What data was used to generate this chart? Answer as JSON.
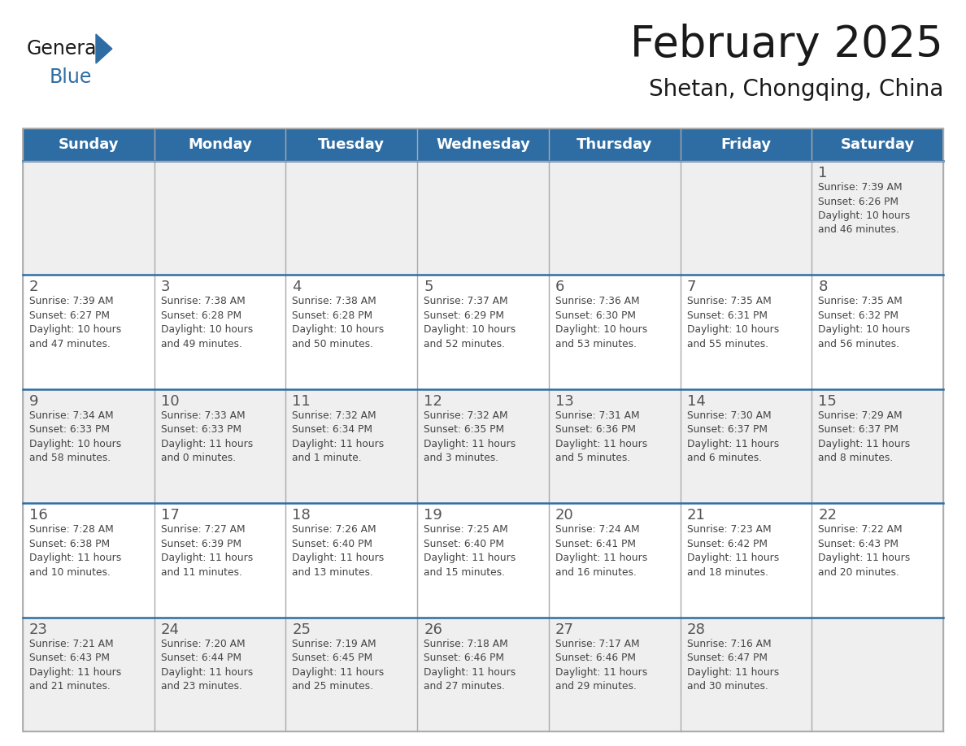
{
  "title": "February 2025",
  "subtitle": "Shetan, Chongqing, China",
  "days_of_week": [
    "Sunday",
    "Monday",
    "Tuesday",
    "Wednesday",
    "Thursday",
    "Friday",
    "Saturday"
  ],
  "header_bg": "#2E6DA4",
  "header_text_color": "#FFFFFF",
  "cell_bg_light": "#EFEFEF",
  "cell_bg_white": "#FFFFFF",
  "cell_text_color": "#444444",
  "day_num_color": "#555555",
  "title_color": "#1a1a1a",
  "subtitle_color": "#1a1a1a",
  "grid_color": "#AAAAAA",
  "row_sep_color": "#2E6DA4",
  "logo_general_color": "#1a1a1a",
  "logo_blue_color": "#2E6DA4",
  "weeks": [
    [
      {
        "day": null,
        "info": null
      },
      {
        "day": null,
        "info": null
      },
      {
        "day": null,
        "info": null
      },
      {
        "day": null,
        "info": null
      },
      {
        "day": null,
        "info": null
      },
      {
        "day": null,
        "info": null
      },
      {
        "day": 1,
        "info": "Sunrise: 7:39 AM\nSunset: 6:26 PM\nDaylight: 10 hours\nand 46 minutes."
      }
    ],
    [
      {
        "day": 2,
        "info": "Sunrise: 7:39 AM\nSunset: 6:27 PM\nDaylight: 10 hours\nand 47 minutes."
      },
      {
        "day": 3,
        "info": "Sunrise: 7:38 AM\nSunset: 6:28 PM\nDaylight: 10 hours\nand 49 minutes."
      },
      {
        "day": 4,
        "info": "Sunrise: 7:38 AM\nSunset: 6:28 PM\nDaylight: 10 hours\nand 50 minutes."
      },
      {
        "day": 5,
        "info": "Sunrise: 7:37 AM\nSunset: 6:29 PM\nDaylight: 10 hours\nand 52 minutes."
      },
      {
        "day": 6,
        "info": "Sunrise: 7:36 AM\nSunset: 6:30 PM\nDaylight: 10 hours\nand 53 minutes."
      },
      {
        "day": 7,
        "info": "Sunrise: 7:35 AM\nSunset: 6:31 PM\nDaylight: 10 hours\nand 55 minutes."
      },
      {
        "day": 8,
        "info": "Sunrise: 7:35 AM\nSunset: 6:32 PM\nDaylight: 10 hours\nand 56 minutes."
      }
    ],
    [
      {
        "day": 9,
        "info": "Sunrise: 7:34 AM\nSunset: 6:33 PM\nDaylight: 10 hours\nand 58 minutes."
      },
      {
        "day": 10,
        "info": "Sunrise: 7:33 AM\nSunset: 6:33 PM\nDaylight: 11 hours\nand 0 minutes."
      },
      {
        "day": 11,
        "info": "Sunrise: 7:32 AM\nSunset: 6:34 PM\nDaylight: 11 hours\nand 1 minute."
      },
      {
        "day": 12,
        "info": "Sunrise: 7:32 AM\nSunset: 6:35 PM\nDaylight: 11 hours\nand 3 minutes."
      },
      {
        "day": 13,
        "info": "Sunrise: 7:31 AM\nSunset: 6:36 PM\nDaylight: 11 hours\nand 5 minutes."
      },
      {
        "day": 14,
        "info": "Sunrise: 7:30 AM\nSunset: 6:37 PM\nDaylight: 11 hours\nand 6 minutes."
      },
      {
        "day": 15,
        "info": "Sunrise: 7:29 AM\nSunset: 6:37 PM\nDaylight: 11 hours\nand 8 minutes."
      }
    ],
    [
      {
        "day": 16,
        "info": "Sunrise: 7:28 AM\nSunset: 6:38 PM\nDaylight: 11 hours\nand 10 minutes."
      },
      {
        "day": 17,
        "info": "Sunrise: 7:27 AM\nSunset: 6:39 PM\nDaylight: 11 hours\nand 11 minutes."
      },
      {
        "day": 18,
        "info": "Sunrise: 7:26 AM\nSunset: 6:40 PM\nDaylight: 11 hours\nand 13 minutes."
      },
      {
        "day": 19,
        "info": "Sunrise: 7:25 AM\nSunset: 6:40 PM\nDaylight: 11 hours\nand 15 minutes."
      },
      {
        "day": 20,
        "info": "Sunrise: 7:24 AM\nSunset: 6:41 PM\nDaylight: 11 hours\nand 16 minutes."
      },
      {
        "day": 21,
        "info": "Sunrise: 7:23 AM\nSunset: 6:42 PM\nDaylight: 11 hours\nand 18 minutes."
      },
      {
        "day": 22,
        "info": "Sunrise: 7:22 AM\nSunset: 6:43 PM\nDaylight: 11 hours\nand 20 minutes."
      }
    ],
    [
      {
        "day": 23,
        "info": "Sunrise: 7:21 AM\nSunset: 6:43 PM\nDaylight: 11 hours\nand 21 minutes."
      },
      {
        "day": 24,
        "info": "Sunrise: 7:20 AM\nSunset: 6:44 PM\nDaylight: 11 hours\nand 23 minutes."
      },
      {
        "day": 25,
        "info": "Sunrise: 7:19 AM\nSunset: 6:45 PM\nDaylight: 11 hours\nand 25 minutes."
      },
      {
        "day": 26,
        "info": "Sunrise: 7:18 AM\nSunset: 6:46 PM\nDaylight: 11 hours\nand 27 minutes."
      },
      {
        "day": 27,
        "info": "Sunrise: 7:17 AM\nSunset: 6:46 PM\nDaylight: 11 hours\nand 29 minutes."
      },
      {
        "day": 28,
        "info": "Sunrise: 7:16 AM\nSunset: 6:47 PM\nDaylight: 11 hours\nand 30 minutes."
      },
      {
        "day": null,
        "info": null
      }
    ]
  ],
  "fig_width": 11.88,
  "fig_height": 9.18,
  "dpi": 100
}
